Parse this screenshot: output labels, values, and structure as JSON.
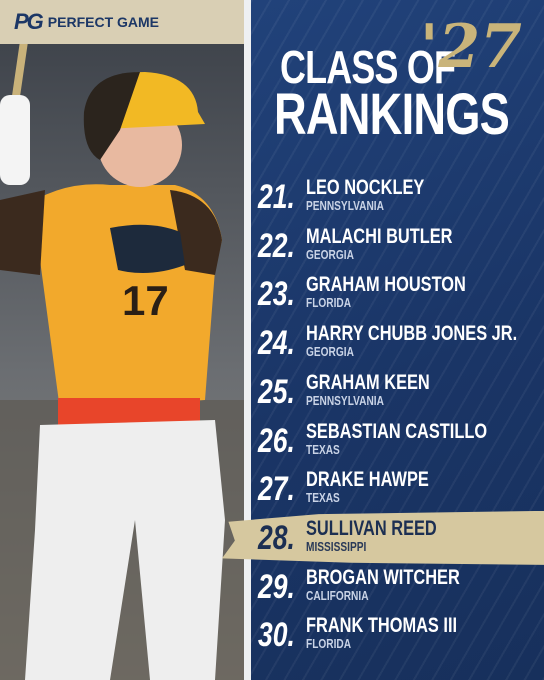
{
  "brand": {
    "logo": "PG",
    "name": "PERFECT GAME"
  },
  "title": {
    "line1": "CLASS OF",
    "year": "'27",
    "line2": "RANKINGS"
  },
  "photo": {
    "jersey_number": "17"
  },
  "rankings": [
    {
      "rank": "21.",
      "name": "LEO NOCKLEY",
      "state": "PENNSYLVANIA"
    },
    {
      "rank": "22.",
      "name": "MALACHI BUTLER",
      "state": "GEORGIA"
    },
    {
      "rank": "23.",
      "name": "GRAHAM HOUSTON",
      "state": "FLORIDA"
    },
    {
      "rank": "24.",
      "name": "HARRY CHUBB JONES JR.",
      "state": "GEORGIA"
    },
    {
      "rank": "25.",
      "name": "GRAHAM KEEN",
      "state": "PENNSYLVANIA"
    },
    {
      "rank": "26.",
      "name": "SEBASTIAN CASTILLO",
      "state": "TEXAS"
    },
    {
      "rank": "27.",
      "name": "DRAKE HAWPE",
      "state": "TEXAS"
    },
    {
      "rank": "28.",
      "name": "SULLIVAN REED",
      "state": "MISSISSIPPI",
      "highlighted": true
    },
    {
      "rank": "29.",
      "name": "BROGAN WITCHER",
      "state": "CALIFORNIA"
    },
    {
      "rank": "30.",
      "name": "FRANK THOMAS III",
      "state": "FLORIDA"
    }
  ]
}
